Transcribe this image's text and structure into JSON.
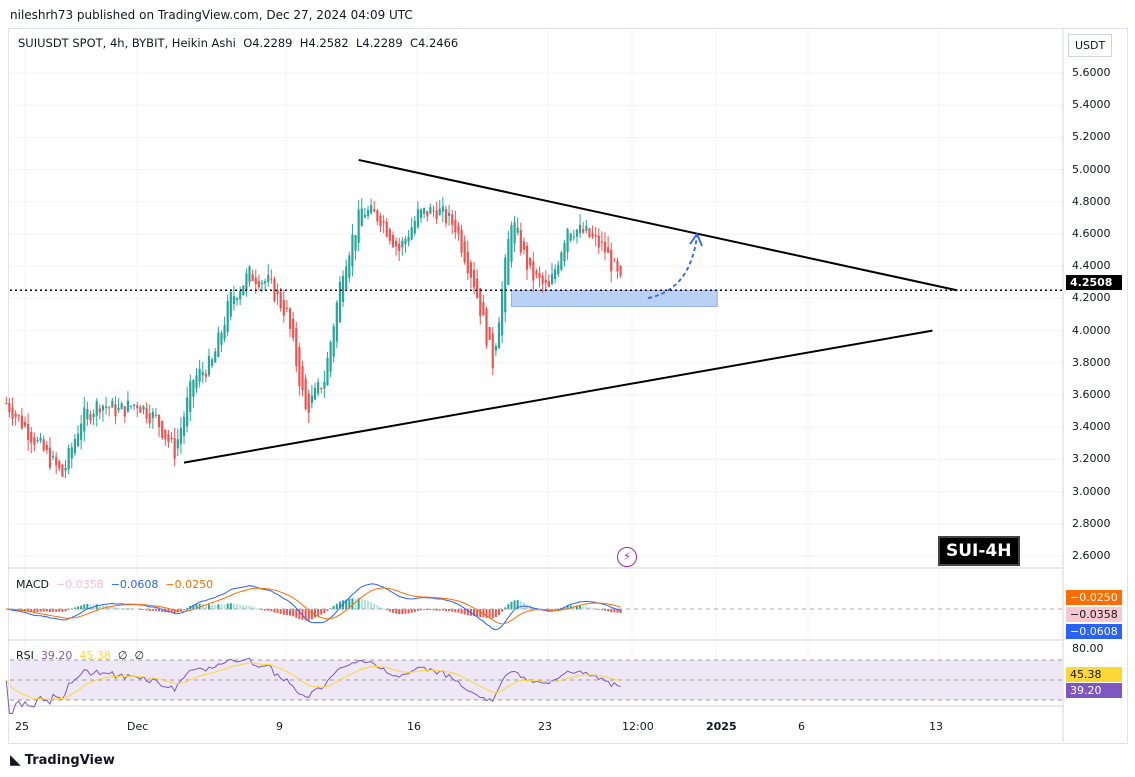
{
  "header": {
    "published": "nileshrh73 published on TradingView.com, Dec 27, 2024 04:09 UTC"
  },
  "legend": {
    "symbol": "SUIUSDT SPOT, 4h, BYBIT, Heikin Ashi",
    "open": "O4.2289",
    "high": "H4.2582",
    "low": "L4.2289",
    "close": "C4.2466"
  },
  "currency": "USDT",
  "price_axis": [
    "5.6000",
    "5.4000",
    "5.2000",
    "5.0000",
    "4.8000",
    "4.6000",
    "4.4000",
    "4.2000",
    "4.0000",
    "3.8000",
    "3.6000",
    "3.4000",
    "3.2000",
    "3.0000",
    "2.8000",
    "2.6000"
  ],
  "last_price": "4.2508",
  "annotation_label": "SUI-4H",
  "macd": {
    "label": "MACD",
    "hist": "−0.0358",
    "macd": "−0.0608",
    "signal": "−0.0250",
    "colors": {
      "hist": "#f8bbd0",
      "macd": "#2962ff",
      "signal": "#ff6d00"
    }
  },
  "rsi": {
    "label": "RSI",
    "value": "39.20",
    "ma": "45.38",
    "extra1": "∅",
    "extra2": "∅",
    "level": "80.00",
    "colors": {
      "rsi": "#7e57c2",
      "ma": "#fdd835"
    }
  },
  "time_axis": [
    "25",
    "Dec",
    "9",
    "16",
    "23",
    "12:00",
    "2025",
    "6",
    "13"
  ],
  "footer": {
    "brand": "TradingView"
  },
  "chart_data": {
    "type": "candlestick",
    "style": "Heikin Ashi",
    "colors": {
      "up": "#26a69a",
      "down": "#ef5350"
    },
    "daily_close": [
      [
        "2024-11-24",
        3.55
      ],
      [
        "2024-11-25",
        3.4
      ],
      [
        "2024-11-26",
        3.25
      ],
      [
        "2024-11-27",
        3.1
      ],
      [
        "2024-11-28",
        3.45
      ],
      [
        "2024-11-29",
        3.55
      ],
      [
        "2024-11-30",
        3.5
      ],
      [
        "2024-12-01",
        3.55
      ],
      [
        "2024-12-02",
        3.45
      ],
      [
        "2024-12-03",
        3.25
      ],
      [
        "2024-12-04",
        3.7
      ],
      [
        "2024-12-05",
        3.8
      ],
      [
        "2024-12-06",
        4.2
      ],
      [
        "2024-12-07",
        4.35
      ],
      [
        "2024-12-08",
        4.3
      ],
      [
        "2024-12-09",
        4.1
      ],
      [
        "2024-12-10",
        3.5
      ],
      [
        "2024-12-11",
        3.7
      ],
      [
        "2024-12-12",
        4.4
      ],
      [
        "2024-12-13",
        4.75
      ],
      [
        "2024-12-14",
        4.7
      ],
      [
        "2024-12-15",
        4.5
      ],
      [
        "2024-12-16",
        4.72
      ],
      [
        "2024-12-17",
        4.75
      ],
      [
        "2024-12-18",
        4.65
      ],
      [
        "2024-12-19",
        4.3
      ],
      [
        "2024-12-20",
        3.8
      ],
      [
        "2024-12-21",
        4.7
      ],
      [
        "2024-12-22",
        4.35
      ],
      [
        "2024-12-23",
        4.25
      ],
      [
        "2024-12-24",
        4.65
      ],
      [
        "2024-12-25",
        4.6
      ],
      [
        "2024-12-26",
        4.5
      ],
      [
        "2024-12-27",
        4.25
      ]
    ],
    "trendlines": [
      {
        "from": [
          "2024-12-12 20:00",
          5.06
        ],
        "to": [
          "2025-01-13 20:00",
          4.25
        ]
      },
      {
        "from": [
          "2024-12-03 12:00",
          3.18
        ],
        "to": [
          "2025-01-12 12:00",
          4.0
        ]
      }
    ],
    "support_zone": {
      "from": "2024-12-21",
      "to": "2025-01-01",
      "top": 4.25,
      "bottom": 4.15
    },
    "ylim": [
      2.5,
      5.75
    ]
  }
}
